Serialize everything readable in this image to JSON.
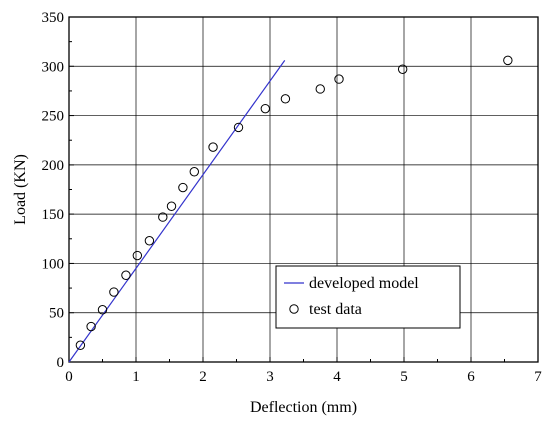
{
  "chart_data": {
    "type": "line",
    "title": "",
    "xlabel": "Deflection (mm)",
    "ylabel": "Load (KN)",
    "xlim": [
      0,
      7
    ],
    "ylim": [
      0,
      350
    ],
    "xticks": [
      0,
      1,
      2,
      3,
      4,
      5,
      6,
      7
    ],
    "yticks": [
      0,
      50,
      100,
      150,
      200,
      250,
      300,
      350
    ],
    "grid": true,
    "legend_position": "bottom-right",
    "colors": {
      "model": "#3333cc",
      "test": "#000000",
      "grid": "#000000"
    },
    "series": [
      {
        "name": "developed model",
        "kind": "line",
        "x": [
          0,
          3.22
        ],
        "y": [
          0,
          306
        ]
      },
      {
        "name": "test data",
        "kind": "scatter",
        "marker": "open-circle",
        "x": [
          0.17,
          0.33,
          0.5,
          0.67,
          0.85,
          1.02,
          1.2,
          1.4,
          1.53,
          1.7,
          1.87,
          2.15,
          2.53,
          2.93,
          3.23,
          3.75,
          4.03,
          4.98,
          6.55
        ],
        "y": [
          17,
          36,
          53,
          71,
          88,
          108,
          123,
          147,
          158,
          177,
          193,
          218,
          238,
          257,
          267,
          277,
          287,
          297,
          306
        ]
      }
    ]
  }
}
